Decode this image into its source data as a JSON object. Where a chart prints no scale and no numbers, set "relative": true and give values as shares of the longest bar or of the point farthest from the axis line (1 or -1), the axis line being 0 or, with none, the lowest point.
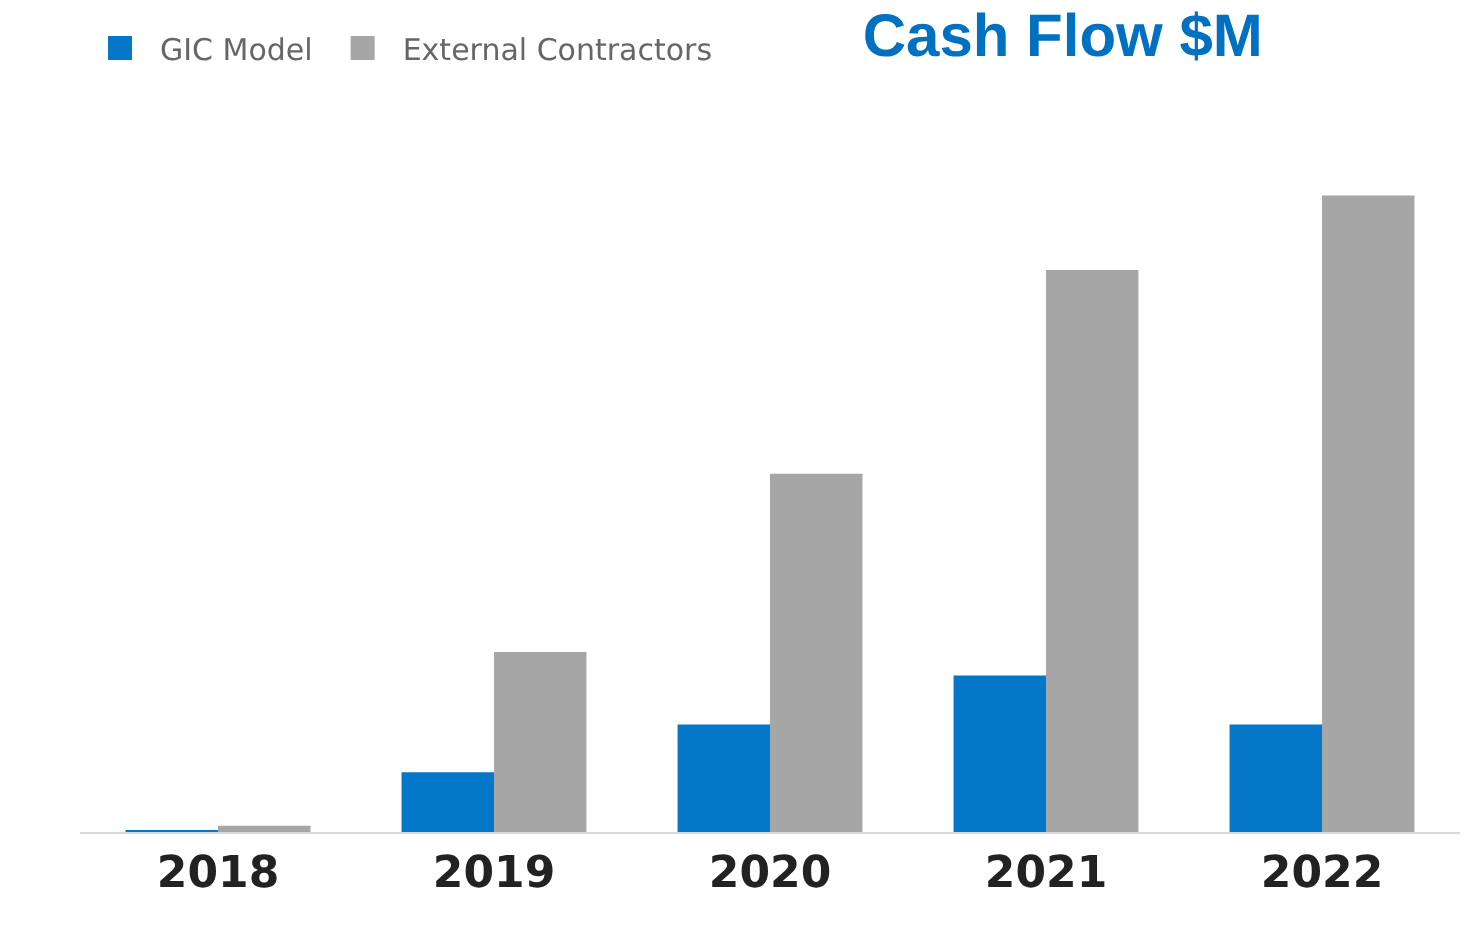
{
  "chart_data": {
    "type": "bar",
    "title": "Cash Flow $M",
    "relative": true,
    "categories": [
      "2018",
      "2019",
      "2020",
      "2021",
      "2022"
    ],
    "series": [
      {
        "name": "GIC Model",
        "color": "#0477c9",
        "values": [
          0.002,
          0.094,
          0.169,
          0.246,
          0.169
        ]
      },
      {
        "name": "External Contractors",
        "color": "#a6a6a6",
        "values": [
          0.01,
          0.283,
          0.563,
          0.883,
          1.0
        ]
      }
    ],
    "legend": "top left"
  }
}
